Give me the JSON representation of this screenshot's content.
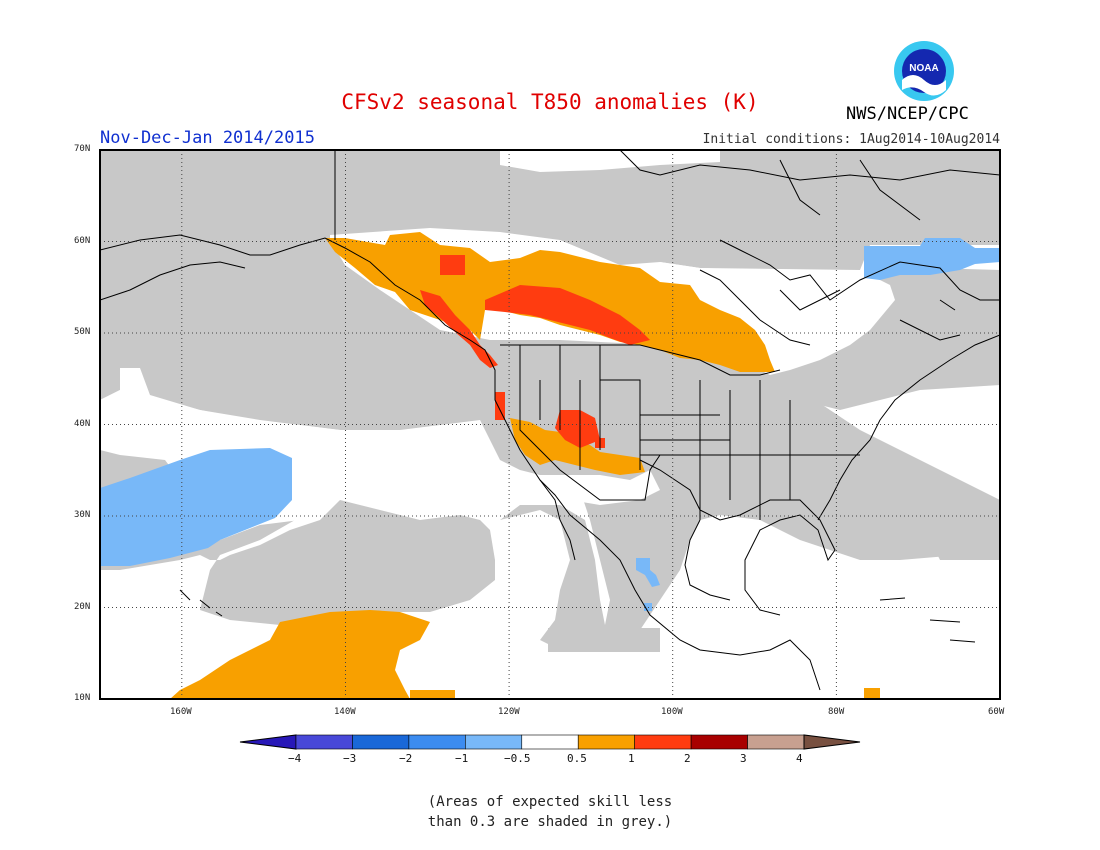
{
  "header": {
    "title": "CFSv2 seasonal T850 anomalies (K)",
    "period": "Nov-Dec-Jan 2014/2015",
    "initial_conditions": "Initial conditions: 1Aug2014-10Aug2014",
    "agency": "NWS/NCEP/CPC",
    "logo_text": "NOAA"
  },
  "map": {
    "extent": {
      "lon_min": -170,
      "lon_max": -60,
      "lat_min": 10,
      "lat_max": 70
    },
    "lat_labels": [
      "10N",
      "20N",
      "30N",
      "40N",
      "50N",
      "60N",
      "70N"
    ],
    "lon_labels": [
      "160W",
      "140W",
      "120W",
      "100W",
      "80W",
      "60W"
    ],
    "colors": {
      "grey": "#c8c8c8",
      "land_outline": "#000000",
      "anom_-0.5_-1": "#78b8f8",
      "anom_0.5_1": "#f8a000",
      "anom_1_2": "#ff3c10"
    }
  },
  "colorbar": {
    "colors": [
      "#2818b8",
      "#4848d8",
      "#1a68d8",
      "#3c8cf0",
      "#78b8f8",
      "#ffffff",
      "#f8a000",
      "#ff3c10",
      "#a80000",
      "#c8a090",
      "#785040"
    ],
    "labels": [
      "−4",
      "−3",
      "−2",
      "−1",
      "−0.5",
      "0.5",
      "1",
      "2",
      "3",
      "4"
    ]
  },
  "footnote": {
    "line1": "(Areas of expected skill less",
    "line2": "than 0.3 are shaded in grey.)"
  }
}
